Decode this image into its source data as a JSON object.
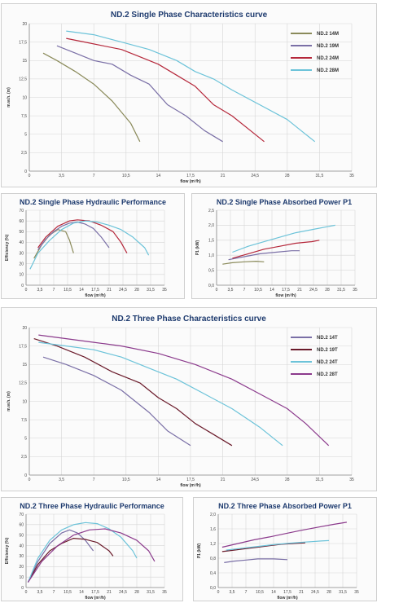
{
  "chart_data": [
    {
      "id": "p1",
      "type": "line",
      "title": "ND.2 Single Phase Characteristics curve",
      "xlabel": "flow (m³/h)",
      "ylabel": "m.w.h. (m)",
      "xlim": [
        0,
        35
      ],
      "ylim": [
        0,
        20
      ],
      "xticks": [
        "0",
        "3,5",
        "7",
        "10,5",
        "14",
        "17,5",
        "21",
        "24,5",
        "28",
        "31,5",
        "35"
      ],
      "yticks": [
        "0",
        "2,5",
        "5",
        "7,5",
        "10",
        "12,5",
        "15",
        "17,5",
        "20"
      ],
      "xtick_values": [
        0,
        3.5,
        7,
        10.5,
        14,
        17.5,
        21,
        24.5,
        28,
        31.5,
        35
      ],
      "ytick_values": [
        0,
        2.5,
        5,
        7.5,
        10,
        12.5,
        15,
        17.5,
        20
      ],
      "legend_position": "top-right",
      "series": [
        {
          "name": "ND.2 14M",
          "color": "#8a8a5a",
          "x": [
            1.5,
            3,
            5,
            7,
            9,
            11,
            12
          ],
          "y": [
            16,
            15,
            13.5,
            11.8,
            9.5,
            6.5,
            4
          ]
        },
        {
          "name": "ND.2 19M",
          "color": "#7a6fa6",
          "x": [
            3,
            5,
            7,
            9,
            11,
            13,
            15,
            17,
            19,
            21
          ],
          "y": [
            17,
            16,
            15,
            14.5,
            13,
            11.8,
            9,
            7.5,
            5.5,
            4
          ]
        },
        {
          "name": "ND.2 24M",
          "color": "#b5273a",
          "x": [
            4,
            6,
            8,
            10,
            12,
            14,
            16,
            18,
            20,
            22,
            24,
            25.5
          ],
          "y": [
            18,
            17.5,
            17,
            16.5,
            15.5,
            14.5,
            13,
            11.5,
            9,
            7.5,
            5.5,
            4
          ]
        },
        {
          "name": "ND.2 28M",
          "color": "#6cc3d9",
          "x": [
            4,
            7,
            10,
            13,
            16,
            18,
            20,
            22,
            25,
            28,
            30,
            31
          ],
          "y": [
            19,
            18.5,
            17.5,
            16.5,
            15,
            13.5,
            12.5,
            11,
            9,
            7,
            5,
            4
          ]
        }
      ]
    },
    {
      "id": "p2",
      "type": "line",
      "title": "ND.2 Single Phase Hydraulic Performance",
      "xlabel": "flow (m³/h)",
      "ylabel": "Efficiency (%)",
      "xlim": [
        0,
        35
      ],
      "ylim": [
        0,
        70
      ],
      "xticks": [
        "0",
        "3,5",
        "7",
        "10,5",
        "14",
        "17,5",
        "21",
        "24,5",
        "28",
        "31,5",
        "35"
      ],
      "yticks": [
        "0",
        "10",
        "20",
        "30",
        "40",
        "50",
        "60",
        "70"
      ],
      "xtick_values": [
        0,
        3.5,
        7,
        10.5,
        14,
        17.5,
        21,
        24.5,
        28,
        31.5,
        35
      ],
      "ytick_values": [
        0,
        10,
        20,
        30,
        40,
        50,
        60,
        70
      ],
      "series": [
        {
          "color": "#8a8a5a",
          "x": [
            2,
            4,
            6,
            8,
            10,
            11,
            12
          ],
          "y": [
            25,
            38,
            47,
            52,
            50,
            42,
            30
          ]
        },
        {
          "color": "#7a6fa6",
          "x": [
            3,
            5,
            7,
            9,
            11,
            13,
            15,
            17,
            19,
            21
          ],
          "y": [
            33,
            43,
            50,
            55,
            58,
            59,
            57,
            53,
            45,
            35
          ]
        },
        {
          "color": "#b5273a",
          "x": [
            3,
            5,
            8,
            11,
            13,
            16,
            19,
            22,
            24,
            25.5
          ],
          "y": [
            35,
            45,
            55,
            60,
            61,
            60,
            56,
            50,
            40,
            30
          ]
        },
        {
          "color": "#6cc3d9",
          "x": [
            1,
            3,
            6,
            9,
            12,
            15,
            18,
            21,
            24,
            27,
            30,
            31
          ],
          "y": [
            15,
            30,
            42,
            52,
            58,
            60,
            59,
            56,
            52,
            45,
            35,
            28
          ]
        }
      ]
    },
    {
      "id": "p3",
      "type": "line",
      "title": "ND.2 Single Phase Absorbed Power P1",
      "xlabel": "flow (m³/h)",
      "ylabel": "P1 (kW)",
      "xlim": [
        0,
        35
      ],
      "ylim": [
        0,
        2.5
      ],
      "xticks": [
        "0",
        "3,5",
        "7",
        "10,5",
        "14",
        "17,5",
        "21",
        "24,5",
        "28",
        "31,5",
        "35"
      ],
      "yticks": [
        "0,0",
        "0,5",
        "1,0",
        "1,5",
        "2,0",
        "2,5"
      ],
      "xtick_values": [
        0,
        3.5,
        7,
        10.5,
        14,
        17.5,
        21,
        24.5,
        28,
        31.5,
        35
      ],
      "ytick_values": [
        0,
        0.5,
        1,
        1.5,
        2,
        2.5
      ],
      "series": [
        {
          "color": "#8a8a5a",
          "x": [
            1.5,
            4,
            7,
            10,
            12
          ],
          "y": [
            0.7,
            0.75,
            0.78,
            0.8,
            0.78
          ]
        },
        {
          "color": "#7a6fa6",
          "x": [
            3,
            7,
            11,
            15,
            19,
            21
          ],
          "y": [
            0.85,
            0.95,
            1.05,
            1.1,
            1.15,
            1.15
          ]
        },
        {
          "color": "#b5273a",
          "x": [
            4,
            8,
            12,
            16,
            20,
            24,
            26
          ],
          "y": [
            0.9,
            1.05,
            1.2,
            1.3,
            1.4,
            1.45,
            1.5
          ]
        },
        {
          "color": "#6cc3d9",
          "x": [
            4,
            8,
            12,
            16,
            20,
            24,
            28,
            30
          ],
          "y": [
            1.1,
            1.3,
            1.45,
            1.6,
            1.75,
            1.85,
            1.95,
            2.0
          ]
        }
      ]
    },
    {
      "id": "p4",
      "type": "line",
      "title": "ND.2 Three Phase Characteristics curve",
      "xlabel": "flow (m³/h)",
      "ylabel": "m.w.h. (m)",
      "xlim": [
        0,
        35
      ],
      "ylim": [
        0,
        20
      ],
      "xticks": [
        "0",
        "3,5",
        "7",
        "10,5",
        "14",
        "17,5",
        "21",
        "24,5",
        "28",
        "31,5",
        "35"
      ],
      "yticks": [
        "0",
        "2,5",
        "5",
        "7,5",
        "10",
        "12,5",
        "15",
        "17,5",
        "20"
      ],
      "xtick_values": [
        0,
        3.5,
        7,
        10.5,
        14,
        17.5,
        21,
        24.5,
        28,
        31.5,
        35
      ],
      "ytick_values": [
        0,
        2.5,
        5,
        7.5,
        10,
        12.5,
        15,
        17.5,
        20
      ],
      "legend_position": "top-right",
      "series": [
        {
          "name": "ND.2 14T",
          "color": "#7a6fa6",
          "x": [
            1.5,
            4,
            7,
            10,
            13,
            15,
            17.5
          ],
          "y": [
            16,
            15,
            13.5,
            11.5,
            8.5,
            6,
            4
          ]
        },
        {
          "name": "ND.2 19T",
          "color": "#6a1a2a",
          "x": [
            0.5,
            3,
            6,
            9,
            12,
            14,
            16,
            18,
            20,
            22
          ],
          "y": [
            18.5,
            17.5,
            16,
            14,
            12.5,
            10.5,
            9,
            7,
            5.5,
            4
          ]
        },
        {
          "name": "ND.2 24T",
          "color": "#6cc3d9",
          "x": [
            1,
            4,
            7,
            10,
            13,
            16,
            19,
            22,
            25,
            27.5
          ],
          "y": [
            18,
            17.5,
            17,
            16,
            14.5,
            13,
            11,
            9,
            6.5,
            4
          ]
        },
        {
          "name": "ND.2 28T",
          "color": "#8b3a8c",
          "x": [
            1,
            4,
            7,
            10,
            14,
            18,
            22,
            25,
            28,
            30,
            32.5
          ],
          "y": [
            19,
            18.5,
            18,
            17.5,
            16.5,
            15,
            13,
            11,
            9,
            7,
            4
          ]
        }
      ]
    },
    {
      "id": "p5",
      "type": "line",
      "title": "ND.2 Three Phase Hydraulic Performance",
      "xlabel": "flow (m³/h)",
      "ylabel": "Efficiency (%)",
      "xlim": [
        0,
        35
      ],
      "ylim": [
        0,
        70
      ],
      "xticks": [
        "0",
        "3,5",
        "7",
        "10,5",
        "14",
        "17,5",
        "21",
        "24,5",
        "28",
        "31,5",
        "35"
      ],
      "yticks": [
        "0",
        "10",
        "20",
        "30",
        "40",
        "50",
        "60",
        "70"
      ],
      "xtick_values": [
        0,
        3.5,
        7,
        10.5,
        14,
        17.5,
        21,
        24.5,
        28,
        31.5,
        35
      ],
      "ytick_values": [
        0,
        10,
        20,
        30,
        40,
        50,
        60,
        70
      ],
      "series": [
        {
          "color": "#7a6fa6",
          "x": [
            0.5,
            3,
            6,
            9,
            11,
            13,
            15,
            17
          ],
          "y": [
            5,
            25,
            42,
            52,
            55,
            52,
            45,
            35
          ]
        },
        {
          "color": "#6a1a2a",
          "x": [
            0.5,
            3,
            6,
            9,
            12,
            15,
            18,
            21,
            22
          ],
          "y": [
            5,
            22,
            35,
            42,
            47,
            46,
            43,
            35,
            30
          ]
        },
        {
          "color": "#6cc3d9",
          "x": [
            0.5,
            3,
            6,
            9,
            12,
            15,
            18,
            21,
            24,
            27,
            28
          ],
          "y": [
            5,
            28,
            45,
            55,
            60,
            62,
            61,
            56,
            48,
            35,
            28
          ]
        },
        {
          "color": "#8b3a8c",
          "x": [
            0.5,
            4,
            8,
            12,
            16,
            20,
            24,
            28,
            31,
            32.5
          ],
          "y": [
            5,
            25,
            40,
            50,
            55,
            56,
            52,
            45,
            35,
            25
          ]
        }
      ]
    },
    {
      "id": "p6",
      "type": "line",
      "title": "ND.2 Three Phase Absorbed Power P1",
      "xlabel": "flow (m³/h)",
      "ylabel": "P1 (kW)",
      "xlim": [
        0,
        35
      ],
      "ylim": [
        0,
        2.0
      ],
      "xticks": [
        "0",
        "3,5",
        "7",
        "10,5",
        "14",
        "17,5",
        "21",
        "24,5",
        "28",
        "31,5",
        "35"
      ],
      "yticks": [
        "0,0",
        "0,4",
        "0,8",
        "1,2",
        "1,6",
        "2,0"
      ],
      "xtick_values": [
        0,
        3.5,
        7,
        10.5,
        14,
        17.5,
        21,
        24.5,
        28,
        31.5,
        35
      ],
      "ytick_values": [
        0,
        0.4,
        0.8,
        1.2,
        1.6,
        2.0
      ],
      "series": [
        {
          "color": "#7a6fa6",
          "x": [
            1.5,
            4,
            7,
            10,
            14,
            17.5
          ],
          "y": [
            0.68,
            0.72,
            0.75,
            0.78,
            0.78,
            0.76
          ]
        },
        {
          "color": "#6a1a2a",
          "x": [
            1,
            4,
            7,
            10,
            13,
            16,
            19,
            22
          ],
          "y": [
            0.98,
            1.02,
            1.06,
            1.1,
            1.14,
            1.18,
            1.2,
            1.22
          ]
        },
        {
          "color": "#6cc3d9",
          "x": [
            2,
            6,
            10,
            14,
            18,
            22,
            26,
            28
          ],
          "y": [
            1.02,
            1.07,
            1.12,
            1.17,
            1.21,
            1.24,
            1.27,
            1.28
          ]
        },
        {
          "color": "#8b3a8c",
          "x": [
            1,
            5,
            9,
            13,
            17,
            21,
            25,
            29,
            32.5
          ],
          "y": [
            1.1,
            1.2,
            1.3,
            1.38,
            1.47,
            1.56,
            1.64,
            1.72,
            1.78
          ]
        }
      ]
    }
  ]
}
